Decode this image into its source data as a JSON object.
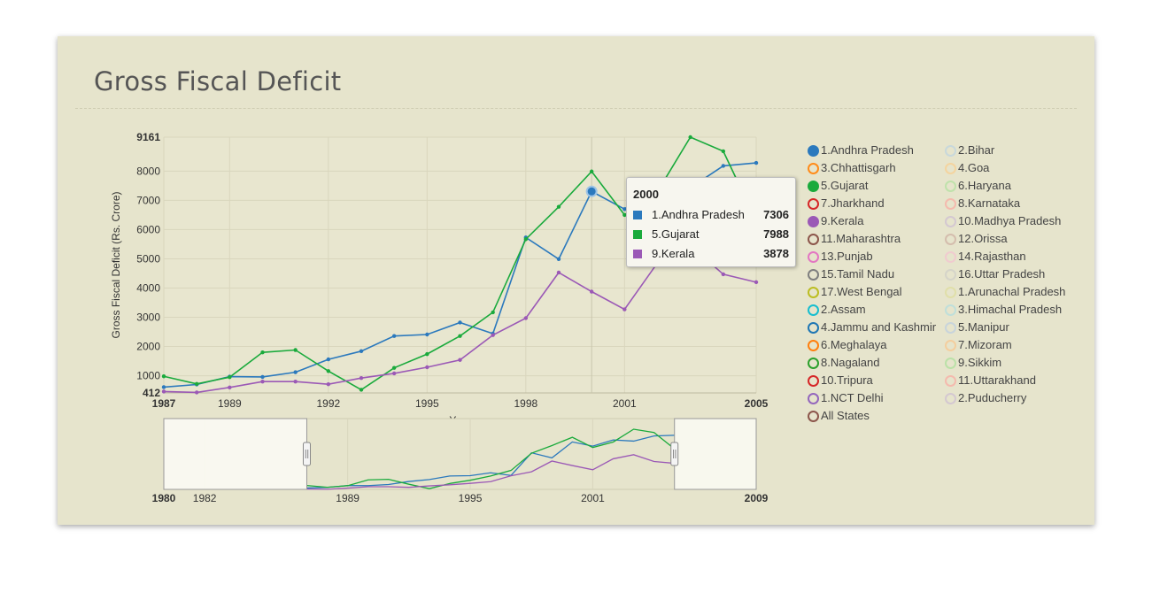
{
  "title": "Gross Fiscal Deficit",
  "chart_data": {
    "type": "line",
    "title": "Gross Fiscal Deficit",
    "xlabel": "Year",
    "ylabel": "Gross Fiscal Deficit (Rs. Crore)",
    "xlim": [
      1987,
      2005
    ],
    "ylim": [
      412,
      9161
    ],
    "x_tick_labels": [
      "1987",
      "1989",
      "1992",
      "1995",
      "1998",
      "2001",
      "2005"
    ],
    "y_tick_labels": [
      "412",
      "1000",
      "2000",
      "3000",
      "4000",
      "5000",
      "6000",
      "7000",
      "8000",
      "9161"
    ],
    "x": [
      1987,
      1988,
      1989,
      1990,
      1991,
      1992,
      1993,
      1994,
      1995,
      1996,
      1997,
      1998,
      1999,
      2000,
      2001,
      2002,
      2003,
      2004,
      2005
    ],
    "series": [
      {
        "name": "1.Andhra Pradesh",
        "color": "#2b79bd",
        "values": [
          610,
          700,
          970,
          960,
          1120,
          1560,
          1840,
          2360,
          2410,
          2820,
          2440,
          5730,
          4990,
          7306,
          6700,
          7600,
          7430,
          8180,
          8280
        ]
      },
      {
        "name": "5.Gujarat",
        "color": "#1aaa3c",
        "values": [
          980,
          720,
          950,
          1800,
          1880,
          1160,
          520,
          1270,
          1740,
          2360,
          3170,
          5670,
          6780,
          7988,
          6500,
          7300,
          9161,
          8680,
          6300
        ]
      },
      {
        "name": "9.Kerala",
        "color": "#9b59b6",
        "values": [
          460,
          430,
          600,
          800,
          800,
          710,
          920,
          1080,
          1290,
          1540,
          2390,
          2970,
          4530,
          3878,
          3270,
          4860,
          5450,
          4470,
          4200
        ]
      }
    ],
    "tooltip": {
      "year": "2000",
      "rows": [
        {
          "name": "1.Andhra Pradesh",
          "value": "7306",
          "color": "#2b79bd"
        },
        {
          "name": "5.Gujarat",
          "value": "7988",
          "color": "#1aaa3c"
        },
        {
          "name": "9.Kerala",
          "value": "3878",
          "color": "#9b59b6"
        }
      ]
    },
    "navigator": {
      "xlim": [
        1980,
        2009
      ],
      "x_tick_labels": [
        "1980",
        "1982",
        "1989",
        "1995",
        "2001",
        "2009"
      ],
      "selection": [
        1987,
        2005
      ]
    },
    "legend": [
      {
        "label": "1.Andhra Pradesh",
        "color": "#2b79bd",
        "active": true
      },
      {
        "label": "2.Bihar",
        "color": "#aecde8",
        "active": false
      },
      {
        "label": "3.Chhattisgarh",
        "color": "#ff8c1a",
        "active": false
      },
      {
        "label": "4.Goa",
        "color": "#ffc77a",
        "active": false
      },
      {
        "label": "5.Gujarat",
        "color": "#1aaa3c",
        "active": true
      },
      {
        "label": "6.Haryana",
        "color": "#9fe08f",
        "active": false
      },
      {
        "label": "7.Jharkhand",
        "color": "#d62728",
        "active": false
      },
      {
        "label": "8.Karnataka",
        "color": "#ff9896",
        "active": false
      },
      {
        "label": "9.Kerala",
        "color": "#9b59b6",
        "active": true
      },
      {
        "label": "10.Madhya Pradesh",
        "color": "#c5b0d5",
        "active": false
      },
      {
        "label": "11.Maharashtra",
        "color": "#8c564b",
        "active": false
      },
      {
        "label": "12.Orissa",
        "color": "#c49c94",
        "active": false
      },
      {
        "label": "13.Punjab",
        "color": "#e377c2",
        "active": false
      },
      {
        "label": "14.Rajasthan",
        "color": "#f7b6d2",
        "active": false
      },
      {
        "label": "15.Tamil Nadu",
        "color": "#7f7f7f",
        "active": false
      },
      {
        "label": "16.Uttar Pradesh",
        "color": "#c7c7c7",
        "active": false
      },
      {
        "label": "17.West Bengal",
        "color": "#bcbd22",
        "active": false
      },
      {
        "label": "1.Arunachal Pradesh",
        "color": "#dbdb8d",
        "active": false
      },
      {
        "label": "2.Assam",
        "color": "#17becf",
        "active": false
      },
      {
        "label": "3.Himachal Pradesh",
        "color": "#9edae5",
        "active": false
      },
      {
        "label": "4.Jammu and Kashmir",
        "color": "#1f77b4",
        "active": false
      },
      {
        "label": "5.Manipur",
        "color": "#aec7e8",
        "active": false
      },
      {
        "label": "6.Meghalaya",
        "color": "#ff7f0e",
        "active": false
      },
      {
        "label": "7.Mizoram",
        "color": "#ffbb78",
        "active": false
      },
      {
        "label": "8.Nagaland",
        "color": "#2ca02c",
        "active": false
      },
      {
        "label": "9.Sikkim",
        "color": "#98df8a",
        "active": false
      },
      {
        "label": "10.Tripura",
        "color": "#d62728",
        "active": false
      },
      {
        "label": "11.Uttarakhand",
        "color": "#ff9896",
        "active": false
      },
      {
        "label": "1.NCT Delhi",
        "color": "#9467bd",
        "active": false
      },
      {
        "label": "2.Puducherry",
        "color": "#c5b0d5",
        "active": false
      },
      {
        "label": "All States",
        "color": "#8c564b",
        "active": false
      }
    ]
  }
}
